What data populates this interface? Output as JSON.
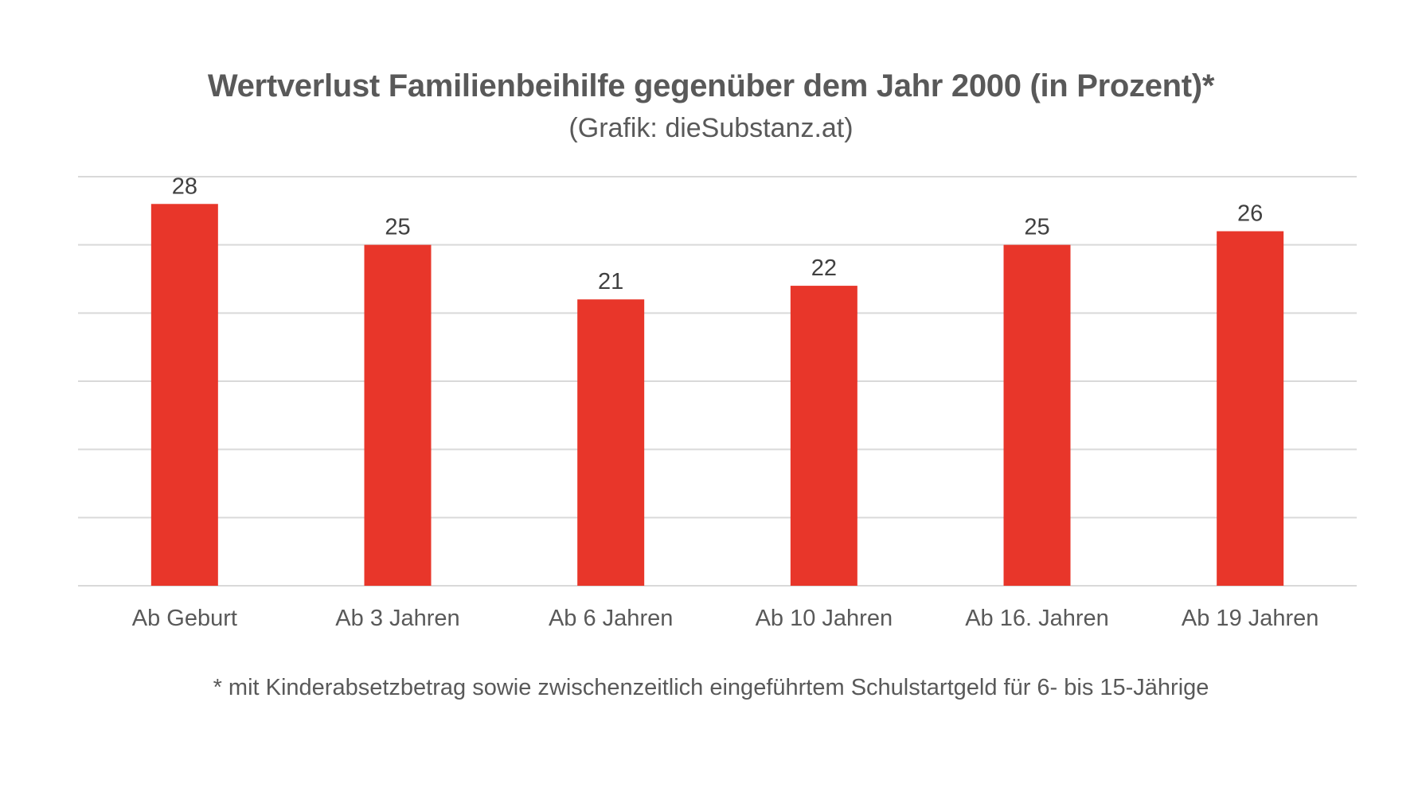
{
  "chart_data": {
    "type": "bar",
    "title": "Wertverlust Familienbeihilfe gegenüber dem Jahr 2000 (in Prozent)*",
    "subtitle": "(Grafik: dieSubstanz.at)",
    "footnote": "* mit Kinderabsetzbetrag sowie zwischenzeitlich eingeführtem Schulstartgeld für 6- bis 15-Jährige",
    "categories": [
      "Ab Geburt",
      "Ab 3 Jahren",
      "Ab 6 Jahren",
      "Ab 10 Jahren",
      "Ab 16. Jahren",
      "Ab 19 Jahren"
    ],
    "values": [
      28,
      25,
      21,
      22,
      25,
      26
    ],
    "data_labels": [
      "28",
      "25",
      "21",
      "22",
      "25",
      "26"
    ],
    "ylim": [
      0,
      30
    ],
    "grid": true,
    "legend": "none",
    "bar_color": "#E8362A",
    "grid_color": "#D9D9D9",
    "text_color": "#595959"
  }
}
